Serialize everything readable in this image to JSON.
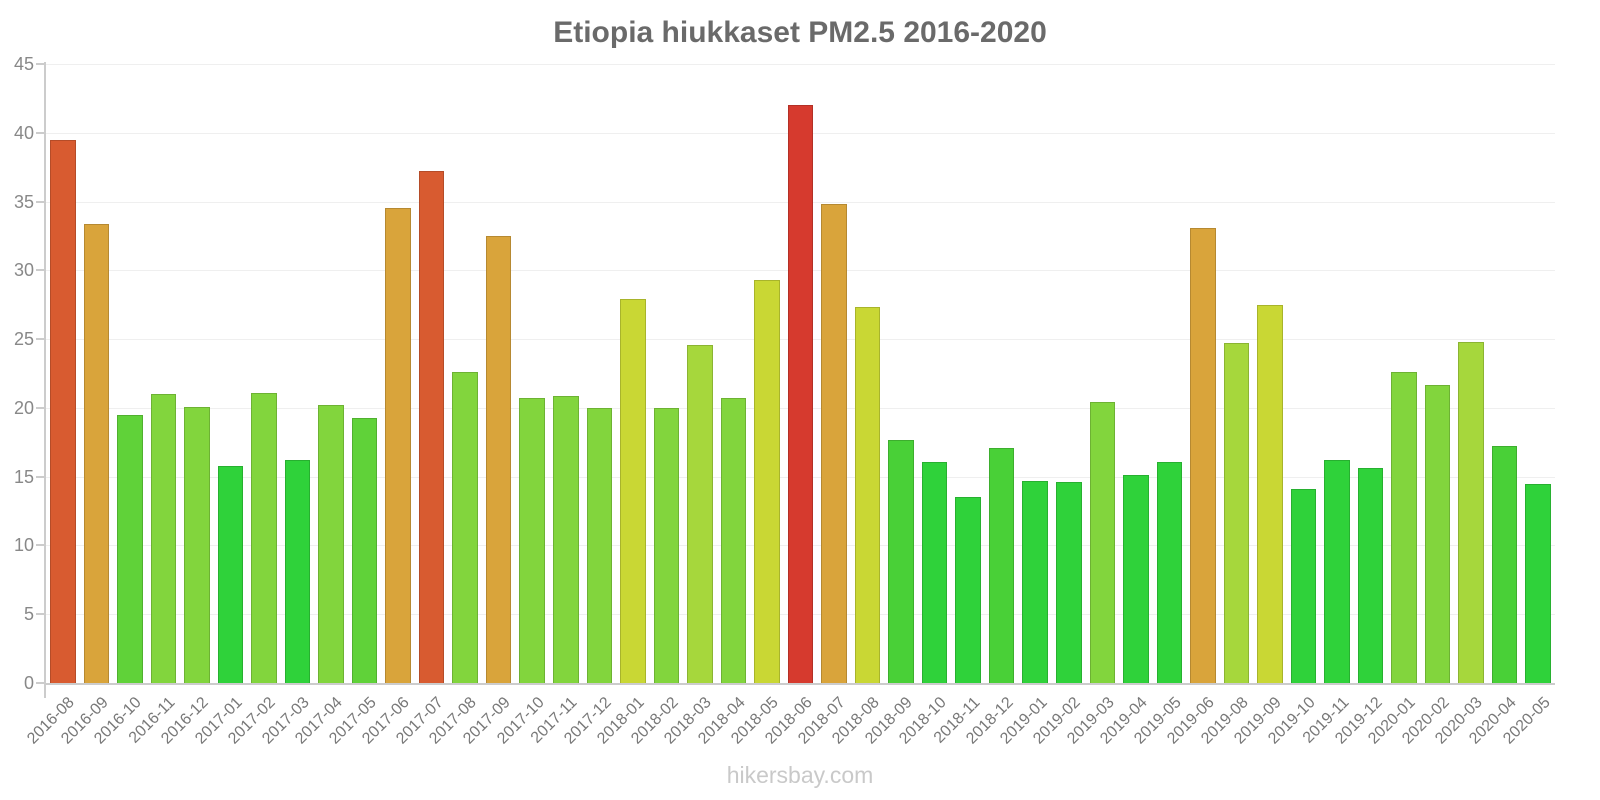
{
  "title": "Etiopia hiukkaset PM2.5 2016-2020",
  "footer": "hikersbay.com",
  "chart_data": {
    "type": "bar",
    "title": "Etiopia hiukkaset PM2.5 2016-2020",
    "xlabel": "",
    "ylabel": "",
    "ylim": [
      0,
      45
    ],
    "ytick_step": 5,
    "grid": true,
    "legend": "none",
    "categories": [
      "2016-08",
      "2016-09",
      "2016-10",
      "2016-11",
      "2016-12",
      "2017-01",
      "2017-02",
      "2017-03",
      "2017-04",
      "2017-05",
      "2017-06",
      "2017-07",
      "2017-08",
      "2017-09",
      "2017-10",
      "2017-11",
      "2017-12",
      "2018-01",
      "2018-02",
      "2018-03",
      "2018-04",
      "2018-05",
      "2018-06",
      "2018-07",
      "2018-08",
      "2018-09",
      "2018-10",
      "2018-11",
      "2018-12",
      "2019-01",
      "2019-02",
      "2019-03",
      "2019-04",
      "2019-05",
      "2019-06",
      "2019-08",
      "2019-09",
      "2019-10",
      "2019-11",
      "2019-12",
      "2020-01",
      "2020-02",
      "2020-03",
      "2020-04",
      "2020-05"
    ],
    "values": [
      39.5,
      33.4,
      19.5,
      21.0,
      20.1,
      15.8,
      21.1,
      16.2,
      20.2,
      19.3,
      34.5,
      37.2,
      22.6,
      32.5,
      20.7,
      20.9,
      20.0,
      27.9,
      20.0,
      24.6,
      20.7,
      29.3,
      42.0,
      34.8,
      27.3,
      17.7,
      16.1,
      13.5,
      17.1,
      14.7,
      14.6,
      20.4,
      15.1,
      16.1,
      33.1,
      24.7,
      27.5,
      14.1,
      16.2,
      15.6,
      22.6,
      21.7,
      24.8,
      17.2,
      14.5
    ],
    "colors": [
      "#d85b30",
      "#d9a43b",
      "#60d239",
      "#82d53d",
      "#82d53d",
      "#2fd23a",
      "#82d53d",
      "#2fd23a",
      "#82d53d",
      "#60d239",
      "#d9a43b",
      "#d85b30",
      "#82d53d",
      "#d9a43b",
      "#82d53d",
      "#82d53d",
      "#82d53d",
      "#c9d734",
      "#82d53d",
      "#a6d73c",
      "#82d53d",
      "#c9d734",
      "#d63a2e",
      "#d9a43b",
      "#c9d734",
      "#49d037",
      "#2fd23a",
      "#2fd23a",
      "#49d037",
      "#2fd23a",
      "#2fd23a",
      "#82d53d",
      "#2fd23a",
      "#2fd23a",
      "#d9a43b",
      "#a6d73c",
      "#c9d734",
      "#2fd23a",
      "#2fd23a",
      "#2fd23a",
      "#82d53d",
      "#82d53d",
      "#a6d73c",
      "#49d037",
      "#2fd23a"
    ]
  },
  "axis_colors": {
    "axis_line": "#cccccc",
    "gridline": "#efefef",
    "y_tick_text": "#888888",
    "x_tick_text": "#787878",
    "title_text": "#6a6a6a",
    "footer_text": "#c9c9c9"
  }
}
